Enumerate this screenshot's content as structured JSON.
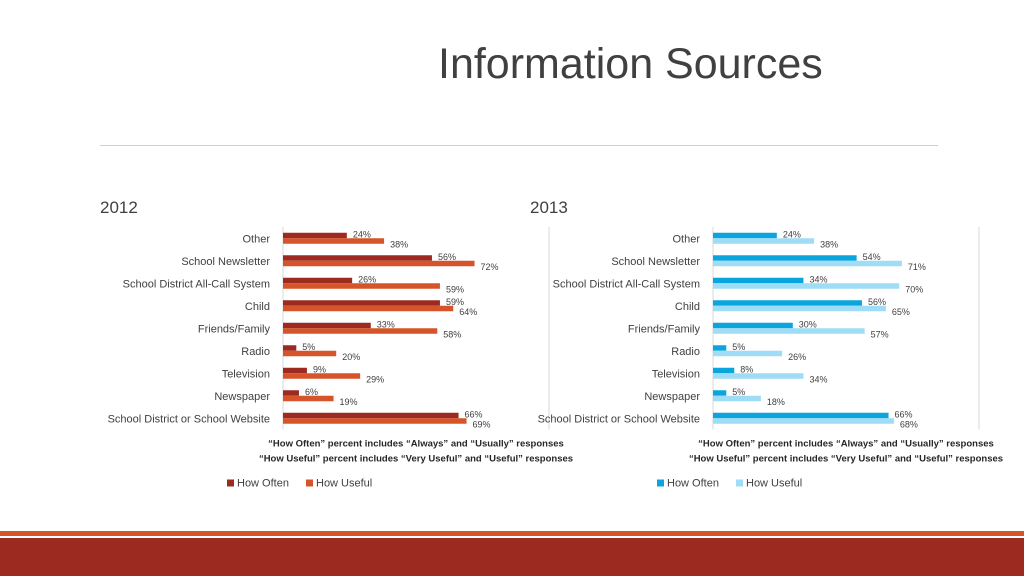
{
  "slide": {
    "title": "Information Sources"
  },
  "chart_data": [
    {
      "type": "bar",
      "orientation": "horizontal",
      "title": "2012",
      "categories": [
        "Other",
        "School Newsletter",
        "School District All-Call System",
        "Child",
        "Friends/Family",
        "Radio",
        "Television",
        "Newspaper",
        "School District or School Website"
      ],
      "series": [
        {
          "name": "How Often",
          "color": "#9c2a20",
          "values": [
            24,
            56,
            26,
            59,
            33,
            5,
            9,
            6,
            66
          ]
        },
        {
          "name": "How Useful",
          "color": "#d5542a",
          "values": [
            38,
            72,
            59,
            64,
            58,
            20,
            29,
            19,
            69
          ]
        }
      ],
      "notes": [
        "“How Often” percent includes “Always” and “Usually” responses",
        "“How Useful” percent includes “Very Useful” and “Useful” responses"
      ],
      "xlim": [
        0,
        100
      ],
      "grid": false,
      "legend": "bottom"
    },
    {
      "type": "bar",
      "orientation": "horizontal",
      "title": "2013",
      "categories": [
        "Other",
        "School Newsletter",
        "School District All-Call System",
        "Child",
        "Friends/Family",
        "Radio",
        "Television",
        "Newspaper",
        "School District or School Website"
      ],
      "series": [
        {
          "name": "How Often",
          "color": "#0aa5dc",
          "values": [
            24,
            54,
            34,
            56,
            30,
            5,
            8,
            5,
            66
          ]
        },
        {
          "name": "How Useful",
          "color": "#9fdcf5",
          "values": [
            38,
            71,
            70,
            65,
            57,
            26,
            34,
            18,
            68
          ]
        }
      ],
      "notes": [
        "“How Often” percent includes “Always” and “Usually” responses",
        "“How Useful” percent includes “Very Useful” and “Useful” responses"
      ],
      "xlim": [
        0,
        100
      ],
      "grid": false,
      "legend": "bottom"
    }
  ]
}
